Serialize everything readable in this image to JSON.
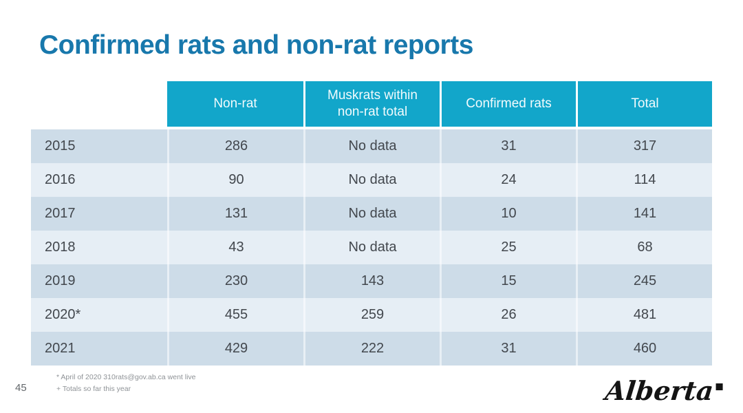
{
  "slide": {
    "title": "Confirmed rats and non-rat reports",
    "page_number": "45",
    "footnotes": [
      "* April of 2020 310rats@gov.ab.ca went live",
      "+ Totals so far this year"
    ],
    "logo": {
      "text": "Alberta"
    }
  },
  "chart_data": {
    "type": "table",
    "title": "Confirmed rats and non-rat reports",
    "columns": [
      "",
      "Non-rat",
      "Muskrats within non-rat total",
      "Confirmed rats",
      "Total"
    ],
    "rows": [
      [
        "2015",
        "286",
        "No data",
        "31",
        "317"
      ],
      [
        "2016",
        "90",
        "No data",
        "24",
        "114"
      ],
      [
        "2017",
        "131",
        "No data",
        "10",
        "141"
      ],
      [
        "2018",
        "43",
        "No data",
        "25",
        "68"
      ],
      [
        "2019",
        "230",
        "143",
        "15",
        "245"
      ],
      [
        "2020*",
        "455",
        "259",
        "26",
        "481"
      ],
      [
        "2021",
        "429",
        "222",
        "31",
        "460"
      ]
    ]
  },
  "colors": {
    "title": "#1878AC",
    "header_bg": "#12A6CA",
    "header_text": "#F2FBFD",
    "row_dark": "#CDDCE8",
    "row_light": "#E6EEF5",
    "body_text": "#42474D",
    "footnote_text": "#8E9296"
  }
}
